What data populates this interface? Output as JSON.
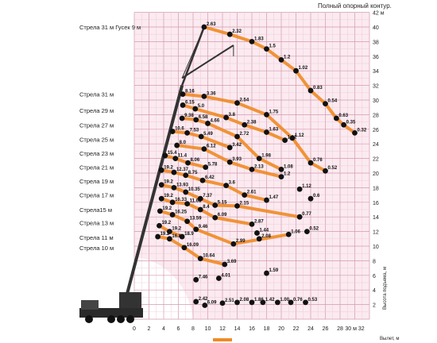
{
  "chart_data": {
    "type": "line",
    "title": "Полный опорный контур.",
    "xlabel": "Вылет, м",
    "ylabel": "Высота подъема, м",
    "xlim": [
      0,
      32
    ],
    "ylim": [
      0,
      42
    ],
    "x_ticks": [
      0,
      2,
      4,
      6,
      8,
      10,
      12,
      14,
      16,
      18,
      20,
      22,
      24,
      26,
      28,
      30
    ],
    "x_tick_labels": [
      "0",
      "2",
      "4",
      "6",
      "8",
      "10",
      "12",
      "14",
      "16",
      "18",
      "20",
      "22",
      "24",
      "26",
      "28",
      "30 м 32"
    ],
    "y_ticks": [
      2,
      4,
      6,
      8,
      10,
      12,
      14,
      16,
      18,
      20,
      22,
      24,
      26,
      28,
      30,
      32,
      34,
      36,
      38,
      40,
      42
    ],
    "y_tick_labels": [
      "2",
      "4",
      "6",
      "8",
      "10",
      "12",
      "14",
      "16",
      "18",
      "20",
      "22",
      "24",
      "26",
      "28",
      "30",
      "32",
      "34",
      "36",
      "38",
      "40",
      "42 м"
    ],
    "grid": true,
    "series": [
      {
        "name": "Стрела 31 м Гусек 9 м",
        "label_y": 40,
        "points": [
          [
            9.5,
            40,
            "2.63"
          ],
          [
            13,
            39,
            "2.32"
          ],
          [
            16,
            38,
            "1.83"
          ],
          [
            18,
            37,
            "1.5"
          ],
          [
            20,
            35.5,
            "1.2"
          ],
          [
            22,
            34,
            "1.02"
          ],
          [
            24,
            31.3,
            "0.83"
          ],
          [
            26,
            29.5,
            "0.54"
          ],
          [
            27.5,
            27.5,
            "0.63"
          ],
          [
            30,
            25.5,
            "0.32"
          ],
          [
            28.5,
            26.6,
            "0.35"
          ]
        ]
      },
      {
        "name": "Стрела 31 м",
        "label_y": 30.8,
        "points": [
          [
            6.6,
            30.8,
            "8.16"
          ],
          [
            9.5,
            30.5,
            "3.36"
          ],
          [
            14,
            29.6,
            "2.54"
          ],
          [
            18,
            28,
            "1.75"
          ],
          [
            21.5,
            24.8,
            "1.12"
          ],
          [
            24,
            21.4,
            "0.76"
          ],
          [
            26,
            20.3,
            "0.52"
          ]
        ]
      },
      {
        "name": "Стрела 29 м",
        "label_y": 28.6,
        "points": [
          [
            6.6,
            29.3,
            "6.15"
          ],
          [
            8.3,
            28.8,
            "5.0"
          ],
          [
            12.5,
            27.6,
            "3.8"
          ],
          [
            15,
            26.6,
            "2.38"
          ],
          [
            18,
            25.6,
            "1.63"
          ],
          [
            20.5,
            24.5,
            "1.12"
          ]
        ]
      },
      {
        "name": "Стрела 27 м",
        "label_y": 26.6,
        "points": [
          [
            6.5,
            27.5,
            "9.38"
          ],
          [
            8.4,
            27.3,
            "6.58"
          ],
          [
            10,
            26.8,
            "4.66"
          ],
          [
            14,
            25,
            "2.72"
          ],
          [
            17,
            22,
            "1.98"
          ],
          [
            20,
            20.5,
            "1.08"
          ]
        ]
      },
      {
        "name": "Стрела 25 м",
        "label_y": 24.6,
        "points": [
          [
            5.2,
            25.7,
            "10.6"
          ],
          [
            7.2,
            25.5,
            "7.53"
          ],
          [
            9.1,
            25,
            "5.49"
          ],
          [
            13,
            23.5,
            "3.42"
          ]
        ]
      },
      {
        "name": "Стрела 23 м",
        "label_y": 22.7,
        "points": [
          [
            5.8,
            23.8,
            "8.0"
          ],
          [
            9.5,
            23.3,
            "6.12"
          ],
          [
            13,
            21.5,
            "3.93"
          ],
          [
            16,
            20.5,
            "2.13"
          ],
          [
            20,
            19.5,
            "1.2"
          ]
        ]
      },
      {
        "name": "Стрела 21 м",
        "label_y": 20.8,
        "points": [
          [
            4.2,
            22.4,
            "15.4"
          ],
          [
            5.6,
            22,
            "11.4"
          ],
          [
            7.3,
            21.4,
            "8.06"
          ],
          [
            9.7,
            20.8,
            "5.78"
          ]
        ]
      },
      {
        "name": "Стрела 19 м",
        "label_y": 18.9,
        "points": [
          [
            3.7,
            20.4,
            "19.2"
          ],
          [
            5.4,
            20.1,
            "12.37"
          ],
          [
            7,
            19.7,
            "8.75"
          ],
          [
            9.3,
            19,
            "6.42"
          ],
          [
            12.5,
            18.3,
            "3.6"
          ],
          [
            15,
            17,
            "2.61"
          ],
          [
            18,
            16.3,
            "1.47"
          ]
        ]
      },
      {
        "name": "Стрела 17 м",
        "label_y": 17,
        "points": [
          [
            3.7,
            18.4,
            "19.2"
          ],
          [
            5.4,
            18,
            "13.93"
          ],
          [
            7,
            17.4,
            "10.35"
          ],
          [
            9,
            16.5,
            "7.37"
          ],
          [
            11,
            15.6,
            "5.15"
          ],
          [
            14,
            15.5,
            "2.15"
          ],
          [
            22.5,
            14,
            "0.77"
          ]
        ]
      },
      {
        "name": "Стрела15 м",
        "label_y": 15,
        "points": [
          [
            3.7,
            16.5,
            "19.2"
          ],
          [
            5.2,
            16,
            "16.33"
          ],
          [
            7.2,
            15.8,
            "11.65"
          ],
          [
            9,
            15,
            "8.4"
          ],
          [
            11,
            13.9,
            "6.09"
          ],
          [
            16,
            13,
            "2.87"
          ]
        ]
      },
      {
        "name": "Стрела 13 м",
        "label_y": 13.2,
        "points": [
          [
            3.5,
            14.8,
            "19.2"
          ],
          [
            5.2,
            14.3,
            "16.25"
          ],
          [
            7.2,
            13.4,
            "13.59"
          ],
          [
            8.4,
            12.3,
            "9.46"
          ],
          [
            13.5,
            10.3,
            "2.99"
          ],
          [
            21,
            11.6,
            "1.06"
          ]
        ]
      },
      {
        "name": "Стрела 11 м",
        "label_y": 11.2,
        "points": [
          [
            3.4,
            12.8,
            "19.2"
          ],
          [
            4.8,
            12,
            "19.2"
          ],
          [
            6.5,
            11.3,
            "18.9"
          ]
        ]
      },
      {
        "name": "Стрела 10 м",
        "label_y": 9.8,
        "points": [
          [
            3.2,
            11.3,
            "19.2"
          ],
          [
            4.8,
            11,
            "16.8"
          ],
          [
            6.8,
            9.8,
            "16.09"
          ],
          [
            9,
            8.3,
            "10.64"
          ],
          [
            12.3,
            7.5,
            "3.69"
          ]
        ]
      }
    ],
    "annotations": [
      [
        11.5,
        5.6,
        "4.01"
      ],
      [
        8.4,
        5.4,
        "7.46"
      ],
      [
        18,
        6.3,
        "1.59"
      ],
      [
        16.7,
        11.8,
        "1.44"
      ],
      [
        17,
        11,
        "2.08"
      ],
      [
        8.4,
        2.4,
        "2.42"
      ],
      [
        12,
        2.2,
        "2.51"
      ],
      [
        14,
        2.3,
        "2.08"
      ],
      [
        16,
        2.3,
        "1.86"
      ],
      [
        17.5,
        2.3,
        "1.42"
      ],
      [
        19.5,
        2.3,
        "1.00"
      ],
      [
        21.3,
        2.3,
        "0.76"
      ],
      [
        23.3,
        2.3,
        "0.53"
      ],
      [
        9.6,
        1.9,
        "6.09"
      ],
      [
        22.5,
        17.8,
        "1.12"
      ],
      [
        24,
        16.5,
        "0.6"
      ],
      [
        23.5,
        12,
        "0.52"
      ]
    ]
  }
}
